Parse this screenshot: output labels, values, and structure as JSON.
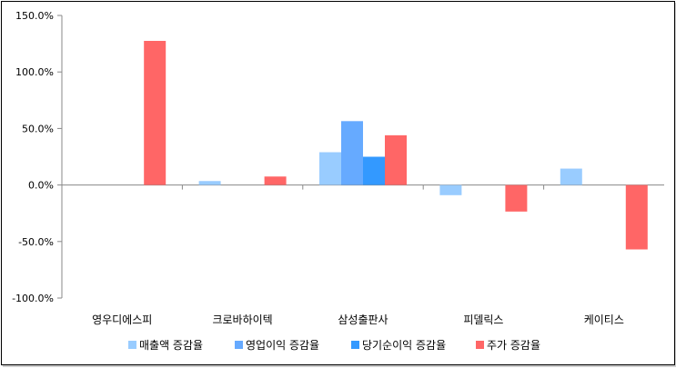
{
  "chart_data": {
    "type": "bar",
    "categories": [
      "영우디에스피",
      "크로바하이텍",
      "삼성출판사",
      "피델릭스",
      "케이티스"
    ],
    "series": [
      {
        "name": "매출액 증감율",
        "values": [
          0,
          3.5,
          29,
          -9,
          14.5
        ],
        "color": "#99ccff"
      },
      {
        "name": "영업이익 증감율",
        "values": [
          null,
          null,
          56.5,
          null,
          null
        ],
        "color": "#66aaff"
      },
      {
        "name": "당기순이익 증감율",
        "values": [
          null,
          null,
          25,
          null,
          null
        ],
        "color": "#3399ff"
      },
      {
        "name": "주가 증감율",
        "values": [
          127.5,
          7.5,
          44,
          -23.5,
          -57
        ],
        "color": "#ff6666"
      }
    ],
    "ylim": [
      -100,
      150
    ],
    "yticks": [
      "150.0%",
      "100.0%",
      "50.0%",
      "0.0%",
      "-50.0%",
      "-100.0%"
    ],
    "ytick_values": [
      150,
      100,
      50,
      0,
      -50,
      -100
    ],
    "grid": false,
    "legend_position": "bottom",
    "title": "",
    "xlabel": "",
    "ylabel": ""
  }
}
